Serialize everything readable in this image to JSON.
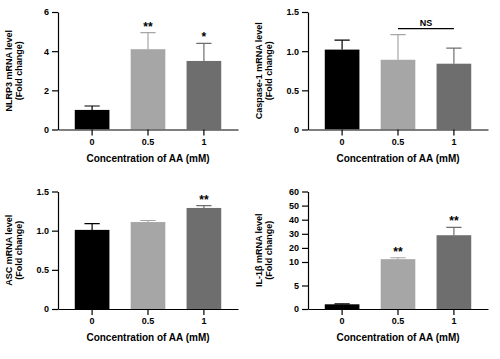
{
  "chart_data": [
    {
      "type": "bar",
      "y_label": "NLRP3 mRNA level (Fold change)",
      "x_label": "Concentration of AA (mM)",
      "categories": [
        "0",
        "0.5",
        "1"
      ],
      "values": [
        1.0,
        4.1,
        3.5
      ],
      "errors": [
        0.2,
        0.85,
        0.9
      ],
      "colors": [
        "#000000",
        "#a6a6a6",
        "#6e6e6e"
      ],
      "ylim": [
        0,
        6
      ],
      "yticks": [
        0,
        2,
        4,
        6
      ],
      "grid": false,
      "annotations": [
        {
          "text": "**",
          "index": 1
        },
        {
          "text": "*",
          "index": 2
        }
      ]
    },
    {
      "type": "bar",
      "y_label": "Caspase-1 mRNA level (Fold change)",
      "x_label": "Concentration of AA (mM)",
      "categories": [
        "0",
        "0.5",
        "1"
      ],
      "values": [
        1.02,
        0.89,
        0.84
      ],
      "errors": [
        0.12,
        0.32,
        0.2
      ],
      "colors": [
        "#000000",
        "#a6a6a6",
        "#6e6e6e"
      ],
      "ylim": [
        0,
        1.5
      ],
      "yticks": [
        0,
        0.5,
        {
          "value": 1,
          "label": "1.0"
        },
        1.5
      ],
      "grid": false,
      "annotations": [
        {
          "text": "NS",
          "from": 1,
          "to": 2
        }
      ]
    },
    {
      "type": "bar",
      "y_label": "ASC mRNA level (Fold change)",
      "x_label": "Concentration of AA (mM)",
      "categories": [
        "0",
        "0.5",
        "1"
      ],
      "values": [
        1.01,
        1.11,
        1.29
      ],
      "errors": [
        0.08,
        0.02,
        0.03
      ],
      "colors": [
        "#000000",
        "#a6a6a6",
        "#6e6e6e"
      ],
      "ylim": [
        0,
        1.5
      ],
      "yticks": [
        0,
        0.5,
        {
          "value": 1,
          "label": "1.0"
        },
        1.5
      ],
      "grid": false,
      "annotations": [
        {
          "text": "**",
          "index": 2
        }
      ]
    },
    {
      "type": "bar",
      "y_label": "IL-1β mRNA level (Fold change)",
      "x_label": "Concentration of AA (mM)",
      "categories": [
        "0",
        "0.5",
        "1"
      ],
      "values": [
        1.0,
        12.0,
        29.0
      ],
      "errors": [
        0.1,
        1.0,
        5.5
      ],
      "colors": [
        "#000000",
        "#a6a6a6",
        "#6e6e6e"
      ],
      "ylim": [
        0,
        60
      ],
      "yticks": [
        0,
        5,
        10,
        20,
        30,
        40,
        50,
        60
      ],
      "grid": false,
      "annotations": [
        {
          "text": "**",
          "index": 1
        },
        {
          "text": "**",
          "index": 2
        }
      ]
    }
  ]
}
